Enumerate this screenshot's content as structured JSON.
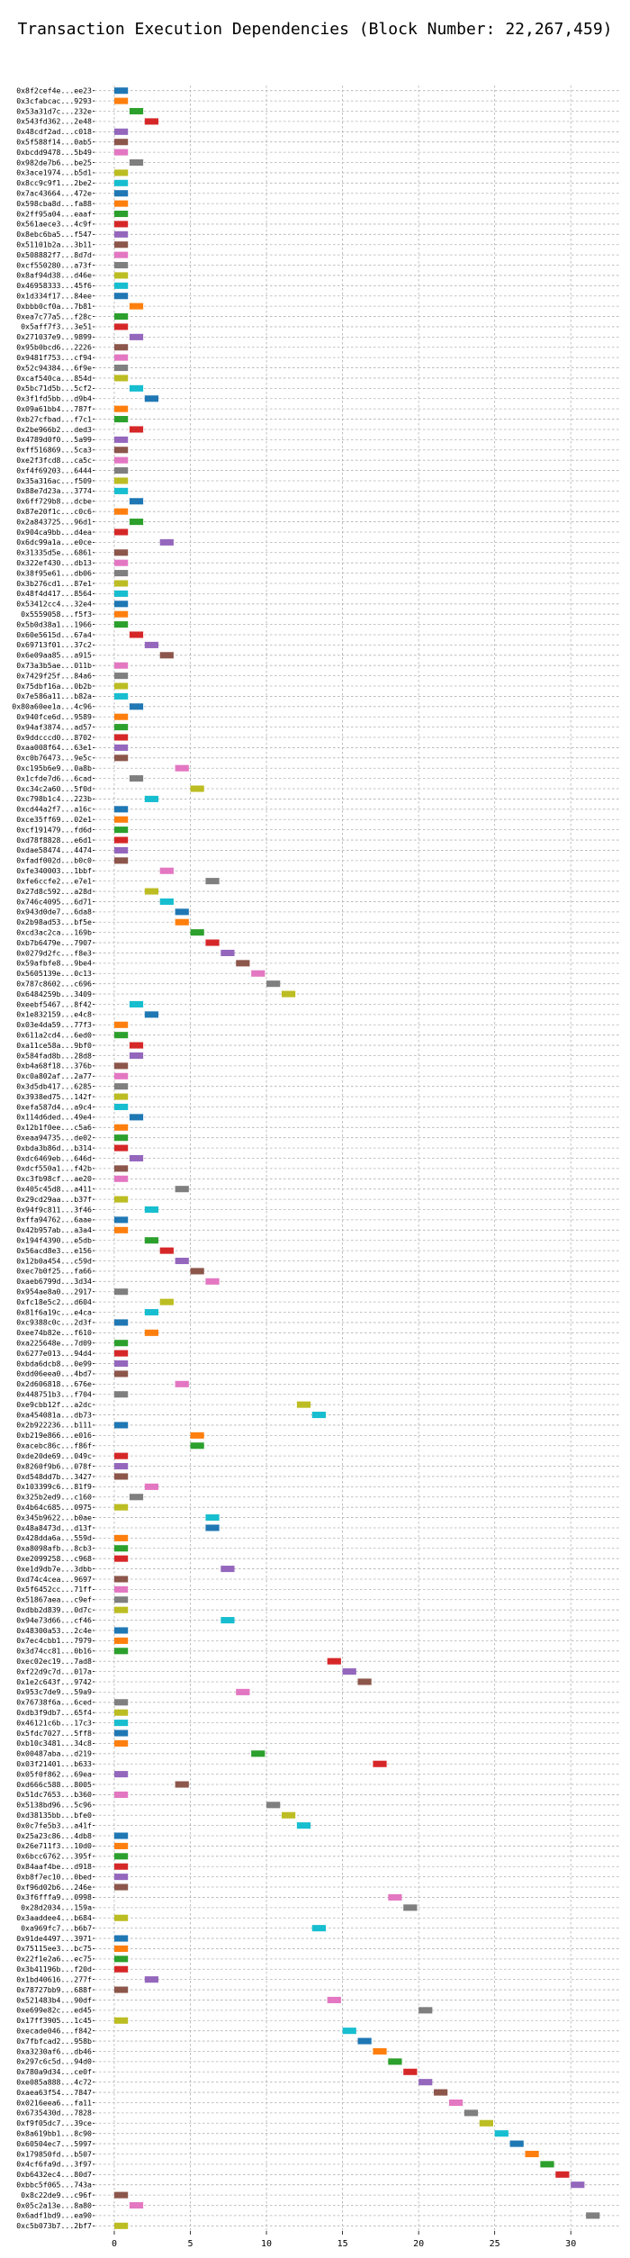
{
  "chart_data": {
    "type": "bar",
    "orientation": "horizontal",
    "title": "Transaction Execution Dependencies (Block Number: 22,267,459)",
    "xlabel": "",
    "ylabel": "",
    "xlim": [
      -1.3,
      33.3
    ],
    "xticks": [
      0,
      5,
      10,
      15,
      20,
      25,
      30
    ],
    "grid": true,
    "bar_width": 0.9,
    "palette": [
      "#1f77b4",
      "#ff7f0e",
      "#2ca02c",
      "#d62728",
      "#9467bd",
      "#8c564b",
      "#e377c2",
      "#7f7f7f",
      "#bcbd22",
      "#17becf"
    ],
    "categories": [
      "0x8f2cef4e...ee23",
      "0x3cfabcac...9293",
      "0x53a31d7c...232e",
      "0x543fd362...2e48",
      "0x48cdf2ad...c018",
      "0x5f588f14...0ab5",
      "0xbcdd9478...5b49",
      "0x982de7b6...be25",
      "0x3ace1974...b5d1",
      "0x8cc9c9f1...2be2",
      "0x7ac43664...472e",
      "0x598cba8d...fa88",
      "0x2ff95a04...eaaf",
      "0x561aece3...4c9f",
      "0x8ebc6ba5...f547",
      "0x51101b2a...3b11",
      "0x508882f7...8d7d",
      "0xcf550280...a73f",
      "0x8af94d38...d46e",
      "0x46958333...45f6",
      "0x1d334f17...84ee",
      "0xbbb0cf0a...7b81",
      "0xea7c77a5...f28c",
      "0x5aff7f3...3e51",
      "0x271037e9...9899",
      "0x95b0bcd6...2226",
      "0x9481f753...cf94",
      "0x52c94384...6f9e",
      "0xcaf540ca...854d",
      "0x5bc71d5b...5cf2",
      "0x3f1fd5bb...d9b4",
      "0x09a61bb4...787f",
      "0xb27cfbad...f7c1",
      "0x2be966b2...ded3",
      "0x4789d0f0...5a99",
      "0xff516869...5ca3",
      "0xe2f3fcd8...ca5c",
      "0xf4f69203...6444",
      "0x35a316ac...f509",
      "0x88e7d23a...3774",
      "0x6ff729b8...dcbe",
      "0x87e20f1c...c0c6",
      "0x2a843725...96d1",
      "0x904ca9bb...d4ea",
      "0x6dc99a1a...e0ce",
      "0x31335d5e...6861",
      "0x322ef430...db13",
      "0x38f95e61...db06",
      "0x3b276cd1...87e1",
      "0x48f4d417...8564",
      "0x53412cc4...32e4",
      "0x5559058...f5f3",
      "0x5b0d38a1...1966",
      "0x60e5615d...67a4",
      "0x69713f01...37c2",
      "0x6e09aa85...a915",
      "0x73a3b5ae...011b",
      "0x7429f25f...84a6",
      "0x75dbf16a...0b2b",
      "0x7e586a11...b82a",
      "0x80a60ee1a...4c96",
      "0x940fce6d...9589",
      "0x94af3874...ad57",
      "0x9ddcccd0...8702",
      "0xaa008f64...63e1",
      "0xc0b76473...9e5c",
      "0xc195b6e9...0a8b",
      "0x1cfde7d6...6cad",
      "0xc34c2a60...5f0d",
      "0xc798b1c4...223b",
      "0xcd44a2f7...a16c",
      "0xce35ff69...02e1",
      "0xcf191479...fd6d",
      "0xd78f8828...e6d1",
      "0xdae58474...4474",
      "0xfadf002d...b0c0",
      "0xfe340003...1bbf",
      "0xfe6ccfe2...e7e1",
      "0x27d8c592...a28d",
      "0x746c4095...6d71",
      "0x943d0de7...6da8",
      "0x2b98ad53...bf5e",
      "0xcd3ac2ca...169b",
      "0xb7b6479e...7907",
      "0x0279d2fc...f8e3",
      "0x59afbfe8...9be4",
      "0x5605139e...0c13",
      "0x787c8602...c696",
      "0x6484259b...3409",
      "0xeebf5467...8f42",
      "0x1e832159...e4c8",
      "0x03e4da59...77f3",
      "0x611a2cd4...6ed0",
      "0xa11ce58a...9bf0",
      "0x584fad8b...28d8",
      "0xb4a68f18...376b",
      "0xc0a802af...2a77",
      "0x3d5db417...6285",
      "0x3938ed75...142f",
      "0xefa587d4...a9c4",
      "0x114d6ded...49e4",
      "0x12b1f0ee...c5a6",
      "0xeaa94735...de02",
      "0xbda3b86d...b314",
      "0xdc6469eb...646d",
      "0xdcf550a1...f42b",
      "0xc3fb98cf...ae20",
      "0x405c45d8...a411",
      "0x29cd29aa...b37f",
      "0x94f9c811...3f46",
      "0xffa94762...6aae",
      "0x42b957ab...a3a4",
      "0x194f4390...e5db",
      "0x56acd8e3...e156",
      "0x12b0a454...c59d",
      "0xec7b0f25...fa66",
      "0xaeb6799d...3d34",
      "0x954ae8a0...2917",
      "0xfc18e5c2...d604",
      "0x81f6a19c...e4ca",
      "0xc9388c0c...2d3f",
      "0xee74b82e...f610",
      "0xa225648e...7d09",
      "0x6277e013...94d4",
      "0xbda6dcb8...0e99",
      "0xdd06eea0...4bd7",
      "0x2d606818...676e",
      "0x448751b3...f704",
      "0xe9cbb12f...a2dc",
      "0xa454081a...db73",
      "0x2b922236...b111",
      "0xb219e866...e016",
      "0xacebc86c...f86f",
      "0xde20de69...049c",
      "0x8260f9b6...078f",
      "0xd548dd7b...3427",
      "0x103399c6...81f9",
      "0x325b2ed9...c160",
      "0x4b64c685...0975",
      "0x345b9622...b0ae",
      "0x48a8473d...d13f",
      "0x428dda6a...559d",
      "0xa8098afb...8cb3",
      "0xe2099258...c968",
      "0xe1d9db7e...3dbb",
      "0xd74c4cea...9697",
      "0x5f6452cc...71ff",
      "0x51867aea...c9ef",
      "0xdbb2d839...0d7c",
      "0x94e73d66...cf46",
      "0x48300a53...2c4e",
      "0x7ec4cbb1...7979",
      "0x3d74cc81...0b16",
      "0xec02ec19...7ad8",
      "0xf22d9c7d...017a",
      "0x1e2c643f...9742",
      "0x953c7de9...59a9",
      "0x76738f6a...6ced",
      "0xdb3f9db7...65f4",
      "0x46121c6b...17c3",
      "0x5fdc7027...5ff8",
      "0xb10c3481...34c8",
      "0x00487aba...d219",
      "0x03f21401...b633",
      "0x05f0f862...69ea",
      "0xd666c588...8005",
      "0x51dc7653...b360",
      "0x5138bd96...5c96",
      "0xd38135bb...bfe0",
      "0x0c7fe5b3...a41f",
      "0x25a23c86...4db8",
      "0x26e711f3...10d0",
      "0x6bcc6762...395f",
      "0x84aaf4be...d918",
      "0xb8f7ec10...0bed",
      "0xf96d02b6...246e",
      "0x3f6fffa9...0998",
      "0x28d2034...159a",
      "0x3aaddee4...b684",
      "0xa969fc7...b6b7",
      "0x91de4497...3971",
      "0x75115ee3...bc75",
      "0x22f1e2a6...ec75",
      "0x3b41196b...f20d",
      "0x1bd40616...277f",
      "0x78727bb9...688f",
      "0x521483b4...90df",
      "0xe699e82c...ed45",
      "0x17ff3905...1c45",
      "0xecade046...f842",
      "0x7fbfcad2...958b",
      "0xa3230af6...db46",
      "0x297c6c5d...94d0",
      "0x780a9d34...ce0f",
      "0xe085a888...4c72",
      "0xaea63f54...7847",
      "0x0216eea6...fa11",
      "0x6735430d...7828",
      "0xf9f05dc7...39ce",
      "0x8a619bb1...8c90",
      "0x60504ec7...5997",
      "0x179850fd...b507",
      "0x4cf6fa9d...3f97",
      "0xb6432ec4...80d7",
      "0xbbc5f065...743a",
      "0x8c22de9...c96f",
      "0x05c2a13e...8a80",
      "0x6adf1bd9...ea90",
      "0xc5b073b7...2bf7"
    ],
    "values": [
      0,
      0,
      1,
      2,
      0,
      0,
      0,
      1,
      0,
      0,
      0,
      0,
      0,
      0,
      0,
      0,
      0,
      0,
      0,
      0,
      0,
      1,
      0,
      0,
      1,
      0,
      0,
      0,
      0,
      1,
      2,
      0,
      0,
      1,
      0,
      0,
      0,
      0,
      0,
      0,
      1,
      0,
      1,
      0,
      3,
      0,
      0,
      0,
      0,
      0,
      0,
      0,
      0,
      1,
      2,
      3,
      0,
      0,
      0,
      0,
      1,
      0,
      0,
      0,
      0,
      0,
      4,
      1,
      5,
      2,
      0,
      0,
      0,
      0,
      0,
      0,
      3,
      6,
      2,
      3,
      4,
      4,
      5,
      6,
      7,
      8,
      9,
      10,
      11,
      1,
      2,
      0,
      0,
      1,
      1,
      0,
      0,
      0,
      0,
      0,
      1,
      0,
      0,
      0,
      1,
      0,
      0,
      4,
      0,
      2,
      0,
      0,
      2,
      3,
      4,
      5,
      6,
      0,
      3,
      2,
      0,
      2,
      0,
      0,
      0,
      0,
      4,
      0,
      12,
      13,
      0,
      5,
      5,
      0,
      0,
      0,
      2,
      1,
      0,
      6,
      6,
      0,
      0,
      0,
      7,
      0,
      0,
      0,
      0,
      7,
      0,
      0,
      0,
      14,
      15,
      16,
      8,
      0,
      0,
      0,
      0,
      0,
      9,
      17,
      0,
      4,
      0,
      10,
      11,
      12,
      0,
      0,
      0,
      0,
      0,
      0,
      18,
      19,
      0,
      13,
      0,
      0,
      0,
      0,
      2,
      0,
      14,
      20,
      0,
      15,
      16,
      17,
      18,
      19,
      20,
      21,
      22,
      23,
      24,
      25,
      26,
      27,
      28,
      29,
      30,
      0,
      1,
      31,
      0
    ]
  }
}
